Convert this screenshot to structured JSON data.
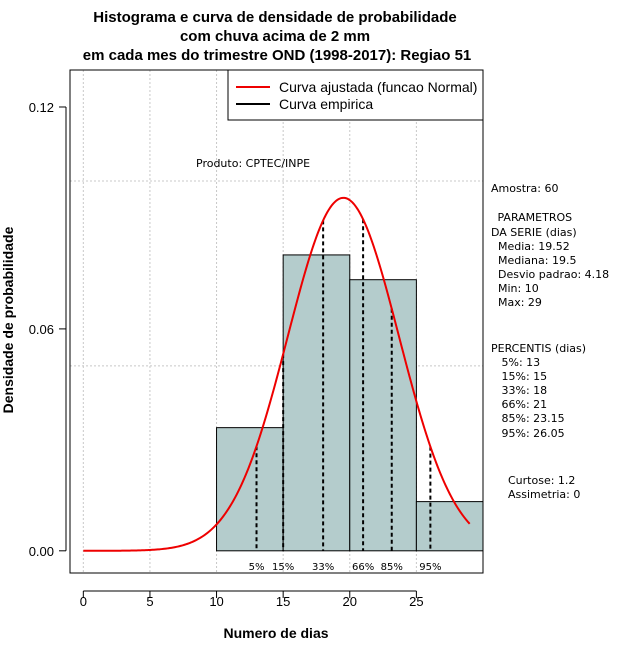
{
  "chart_data": {
    "type": "histogram",
    "title_lines": [
      "Histograma e curva de densidade de probabilidade",
      "com chuva acima de 2 mm",
      "em cada mes do trimestre OND (1998-2017): Regiao 51"
    ],
    "xlabel": "Numero de dias",
    "ylabel": "Densidade de probabilidade",
    "xlim": [
      -1,
      30
    ],
    "ylim": [
      -0.006,
      0.13
    ],
    "x_ticks": [
      0,
      5,
      10,
      15,
      20,
      25
    ],
    "y_ticks": [
      0.0,
      0.06,
      0.12
    ],
    "y_tick_labels": [
      "0.00",
      "0.06",
      "0.12"
    ],
    "grid_x": [
      0,
      5,
      10,
      15,
      20,
      25
    ],
    "grid_y": [
      0.05,
      0.1
    ],
    "bins": [
      {
        "from": 10,
        "to": 15,
        "density": 0.0333
      },
      {
        "from": 15,
        "to": 20,
        "density": 0.08
      },
      {
        "from": 20,
        "to": 25,
        "density": 0.0733
      },
      {
        "from": 25,
        "to": 30,
        "density": 0.0133
      }
    ],
    "normal_fit": {
      "mean": 19.52,
      "sd": 4.18,
      "x_from": 0,
      "x_to": 29
    },
    "percentile_lines": [
      {
        "label": "5%",
        "x": 13
      },
      {
        "label": "15%",
        "x": 15
      },
      {
        "label": "33%",
        "x": 18
      },
      {
        "label": "66%",
        "x": 21
      },
      {
        "label": "85%",
        "x": 23.15
      },
      {
        "label": "95%",
        "x": 26.05
      }
    ],
    "legend": [
      {
        "label": "Curva ajustada (funcao Normal)",
        "color": "#ee0000"
      },
      {
        "label": "Curva empirica",
        "color": "#000000"
      }
    ],
    "colors": {
      "bar_fill": "#b4cccc",
      "curve": "#ee0000",
      "grid": "#c8c8c8"
    },
    "annotation": "Produto: CPTEC/INPE",
    "side_stats": [
      "Amostra: 60",
      " PARAMETROS",
      "DA SERIE (dias)",
      "  Media: 19.52",
      "  Mediana: 19.5",
      "  Desvio padrao: 4.18",
      "  Min: 10",
      "  Max: 29",
      "PERCENTIS (dias)",
      "   5%: 13",
      "   15%: 15",
      "   33%: 18",
      "   66%: 21",
      "   85%: 23.15",
      "   95%: 26.05",
      "Curtose: 1.2",
      "Assimetria: 0"
    ]
  }
}
